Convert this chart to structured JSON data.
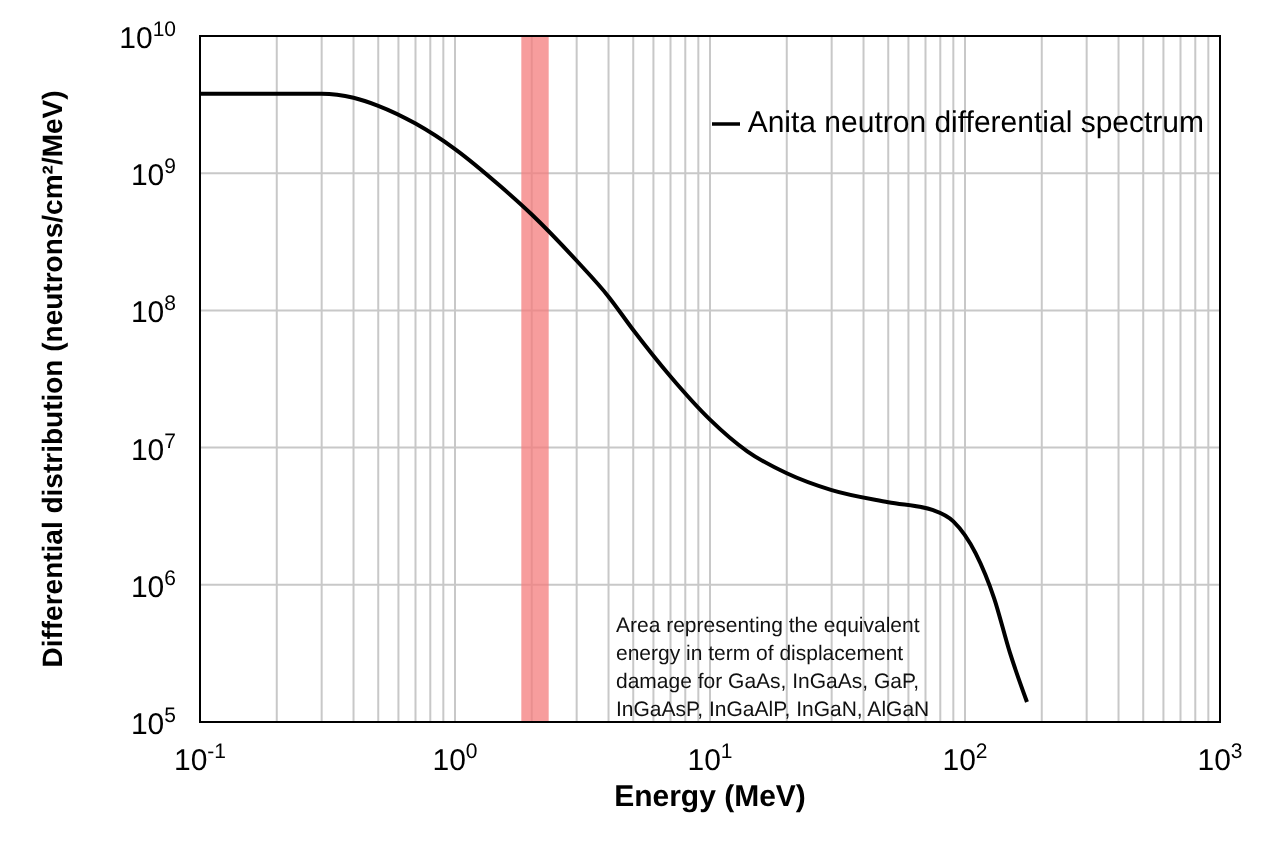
{
  "chart_data": {
    "type": "line",
    "xlabel": "Energy (MeV)",
    "ylabel": "Differential distribution (neutrons/cm²/MeV)",
    "log": "xy",
    "grid": true,
    "legend": "top right",
    "marker": "none",
    "line_style": "solid",
    "xlim": [
      0.1,
      1000
    ],
    "ylim": [
      100000,
      10000000000
    ],
    "xticks": [
      {
        "value": 0.1,
        "label": "10$^{-1}$"
      },
      {
        "value": 0.2,
        "label": null
      },
      {
        "value": 0.3,
        "label": null
      },
      {
        "value": 0.4,
        "label": null
      },
      {
        "value": 0.5,
        "label": null
      },
      {
        "value": 0.6,
        "label": null
      },
      {
        "value": 0.7,
        "label": null
      },
      {
        "value": 0.8,
        "label": null
      },
      {
        "value": 0.9,
        "label": null
      },
      {
        "value": 1,
        "label": "10$^{0}$"
      },
      {
        "value": 2,
        "label": null
      },
      {
        "value": 3,
        "label": null
      },
      {
        "value": 4,
        "label": null
      },
      {
        "value": 5,
        "label": null
      },
      {
        "value": 6,
        "label": null
      },
      {
        "value": 7,
        "label": null
      },
      {
        "value": 8,
        "label": null
      },
      {
        "value": 9,
        "label": null
      },
      {
        "value": 10,
        "label": "10$^{1}$"
      },
      {
        "value": 20,
        "label": null
      },
      {
        "value": 30,
        "label": null
      },
      {
        "value": 40,
        "label": null
      },
      {
        "value": 50,
        "label": null
      },
      {
        "value": 60,
        "label": null
      },
      {
        "value": 70,
        "label": null
      },
      {
        "value": 80,
        "label": null
      },
      {
        "value": 90,
        "label": null
      },
      {
        "value": 100,
        "label": "10$^{2}$"
      },
      {
        "value": 200,
        "label": null
      },
      {
        "value": 300,
        "label": null
      },
      {
        "value": 400,
        "label": null
      },
      {
        "value": 500,
        "label": null
      },
      {
        "value": 600,
        "label": null
      },
      {
        "value": 700,
        "label": null
      },
      {
        "value": 800,
        "label": null
      },
      {
        "value": 900,
        "label": null
      },
      {
        "value": 1000,
        "label": "10$^{3}$"
      }
    ],
    "yticks": [
      {
        "value": 100000,
        "label": "10$^{5}$"
      },
      {
        "value": 1000000,
        "label": "10$^{6}$"
      },
      {
        "value": 10000000,
        "label": "10$^{7}$"
      },
      {
        "value": 100000000,
        "label": "10$^{8}$"
      },
      {
        "value": 1000000000,
        "label": "10$^{9}$"
      },
      {
        "value": 10000000000,
        "label": "10$^{10}$"
      }
    ],
    "bands": [
      {
        "axis": "x",
        "from": 1.82,
        "to": 2.33,
        "color": "#f47c7c"
      }
    ],
    "annotations": [
      "Area representing the equivalent energy in term of displacement damage for GaAs, InGaAs, GaP, InGaAsP, InGaAlP, InGaN, AlGaN"
    ],
    "series": [
      {
        "name": "Anita neutron differential spectrum",
        "color": "#000000",
        "x": [
          0.1,
          0.3,
          0.4,
          0.5,
          0.7,
          1,
          1.5,
          2,
          3,
          4,
          5,
          7,
          10,
          14,
          20,
          30,
          50,
          75,
          90,
          110,
          130,
          150,
          175
        ],
        "values": [
          3800000000,
          3800000000,
          3550000000,
          3100000000,
          2300000000,
          1500000000,
          810000000,
          500000000,
          230000000,
          126000000,
          72000000,
          33000000,
          16000000,
          9400000,
          6500000,
          4900000,
          4000000,
          3500000,
          2900000,
          1700000,
          800000,
          320000,
          140000
        ]
      }
    ]
  }
}
